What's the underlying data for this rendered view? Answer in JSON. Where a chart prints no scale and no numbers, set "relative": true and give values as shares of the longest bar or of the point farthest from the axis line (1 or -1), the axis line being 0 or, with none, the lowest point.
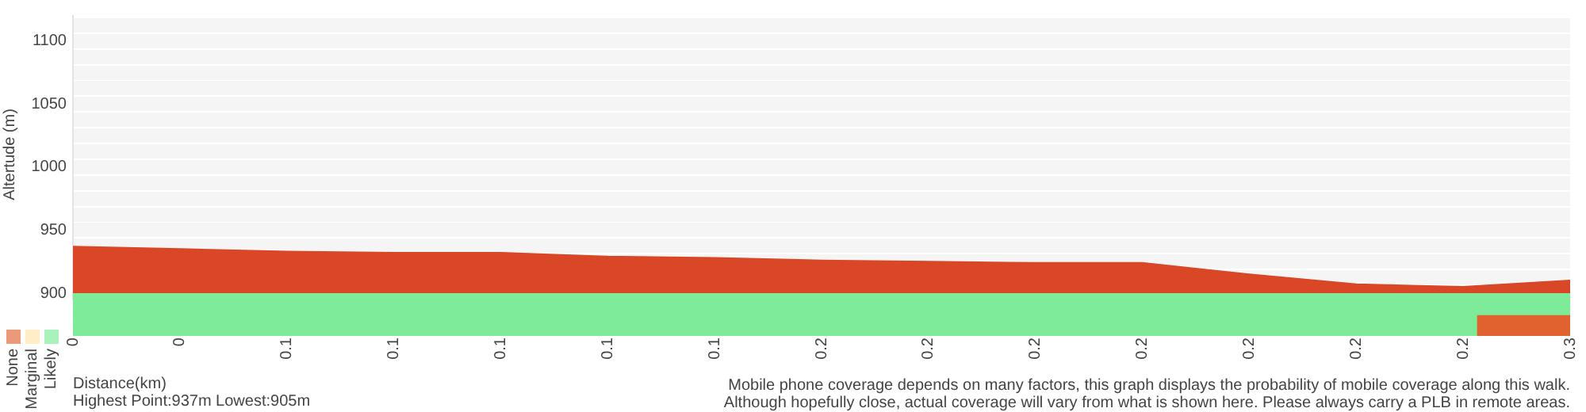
{
  "chart_data": [
    {
      "type": "area",
      "xlabel": "Distance(km)",
      "ylabel": "Altertude (m)",
      "categories": [
        "0",
        "0",
        "0.1",
        "0.1",
        "0.1",
        "0.1",
        "0.1",
        "0.2",
        "0.2",
        "0.2",
        "0.2",
        "0.2",
        "0.2",
        "0.2",
        "0.3"
      ],
      "values": [
        937,
        935,
        933,
        932,
        932,
        929,
        928,
        926,
        925,
        924,
        924,
        915,
        907,
        905,
        910
      ],
      "color": "#d94727",
      "ylim": [
        900,
        1120
      ],
      "yticks": [
        900,
        {
          "value": 912.5,
          "label": null
        },
        {
          "value": 925,
          "label": null
        },
        {
          "value": 937.5,
          "label": null
        },
        950,
        {
          "value": 962.5,
          "label": null
        },
        {
          "value": 975,
          "label": null
        },
        {
          "value": 987.5,
          "label": null
        },
        1000,
        {
          "value": 1012.5,
          "label": null
        },
        {
          "value": 1025,
          "label": null
        },
        {
          "value": 1037.5,
          "label": null
        },
        1050,
        {
          "value": 1062.5,
          "label": null
        },
        {
          "value": 1075,
          "label": null
        },
        {
          "value": 1087.5,
          "label": null
        },
        1100,
        {
          "value": 1112.5,
          "label": null
        }
      ],
      "grid": "y",
      "annotations": [
        "Highest Point:937m Lowest:905m",
        "Mobile phone coverage depends on many factors, this graph displays the probability of mobile coverage along this walk.",
        "Although hopefully close, actual coverage will vary from what is shown here. Please always carry a PLB in remote areas."
      ]
    },
    {
      "type": "bar",
      "orientation": "horizontal",
      "stacked": true,
      "relative": true,
      "legend": "bottom left",
      "categories": [
        null,
        null
      ],
      "series": [
        {
          "name": "Likely",
          "color": "#7deb97",
          "values": [
            1,
            0.9375
          ]
        },
        {
          "name": "Marginal",
          "color": "#ffe3a8",
          "values": [
            null,
            null
          ]
        },
        {
          "name": "None",
          "color": "#e0622f",
          "values": [
            null,
            0.0625
          ]
        }
      ]
    }
  ]
}
